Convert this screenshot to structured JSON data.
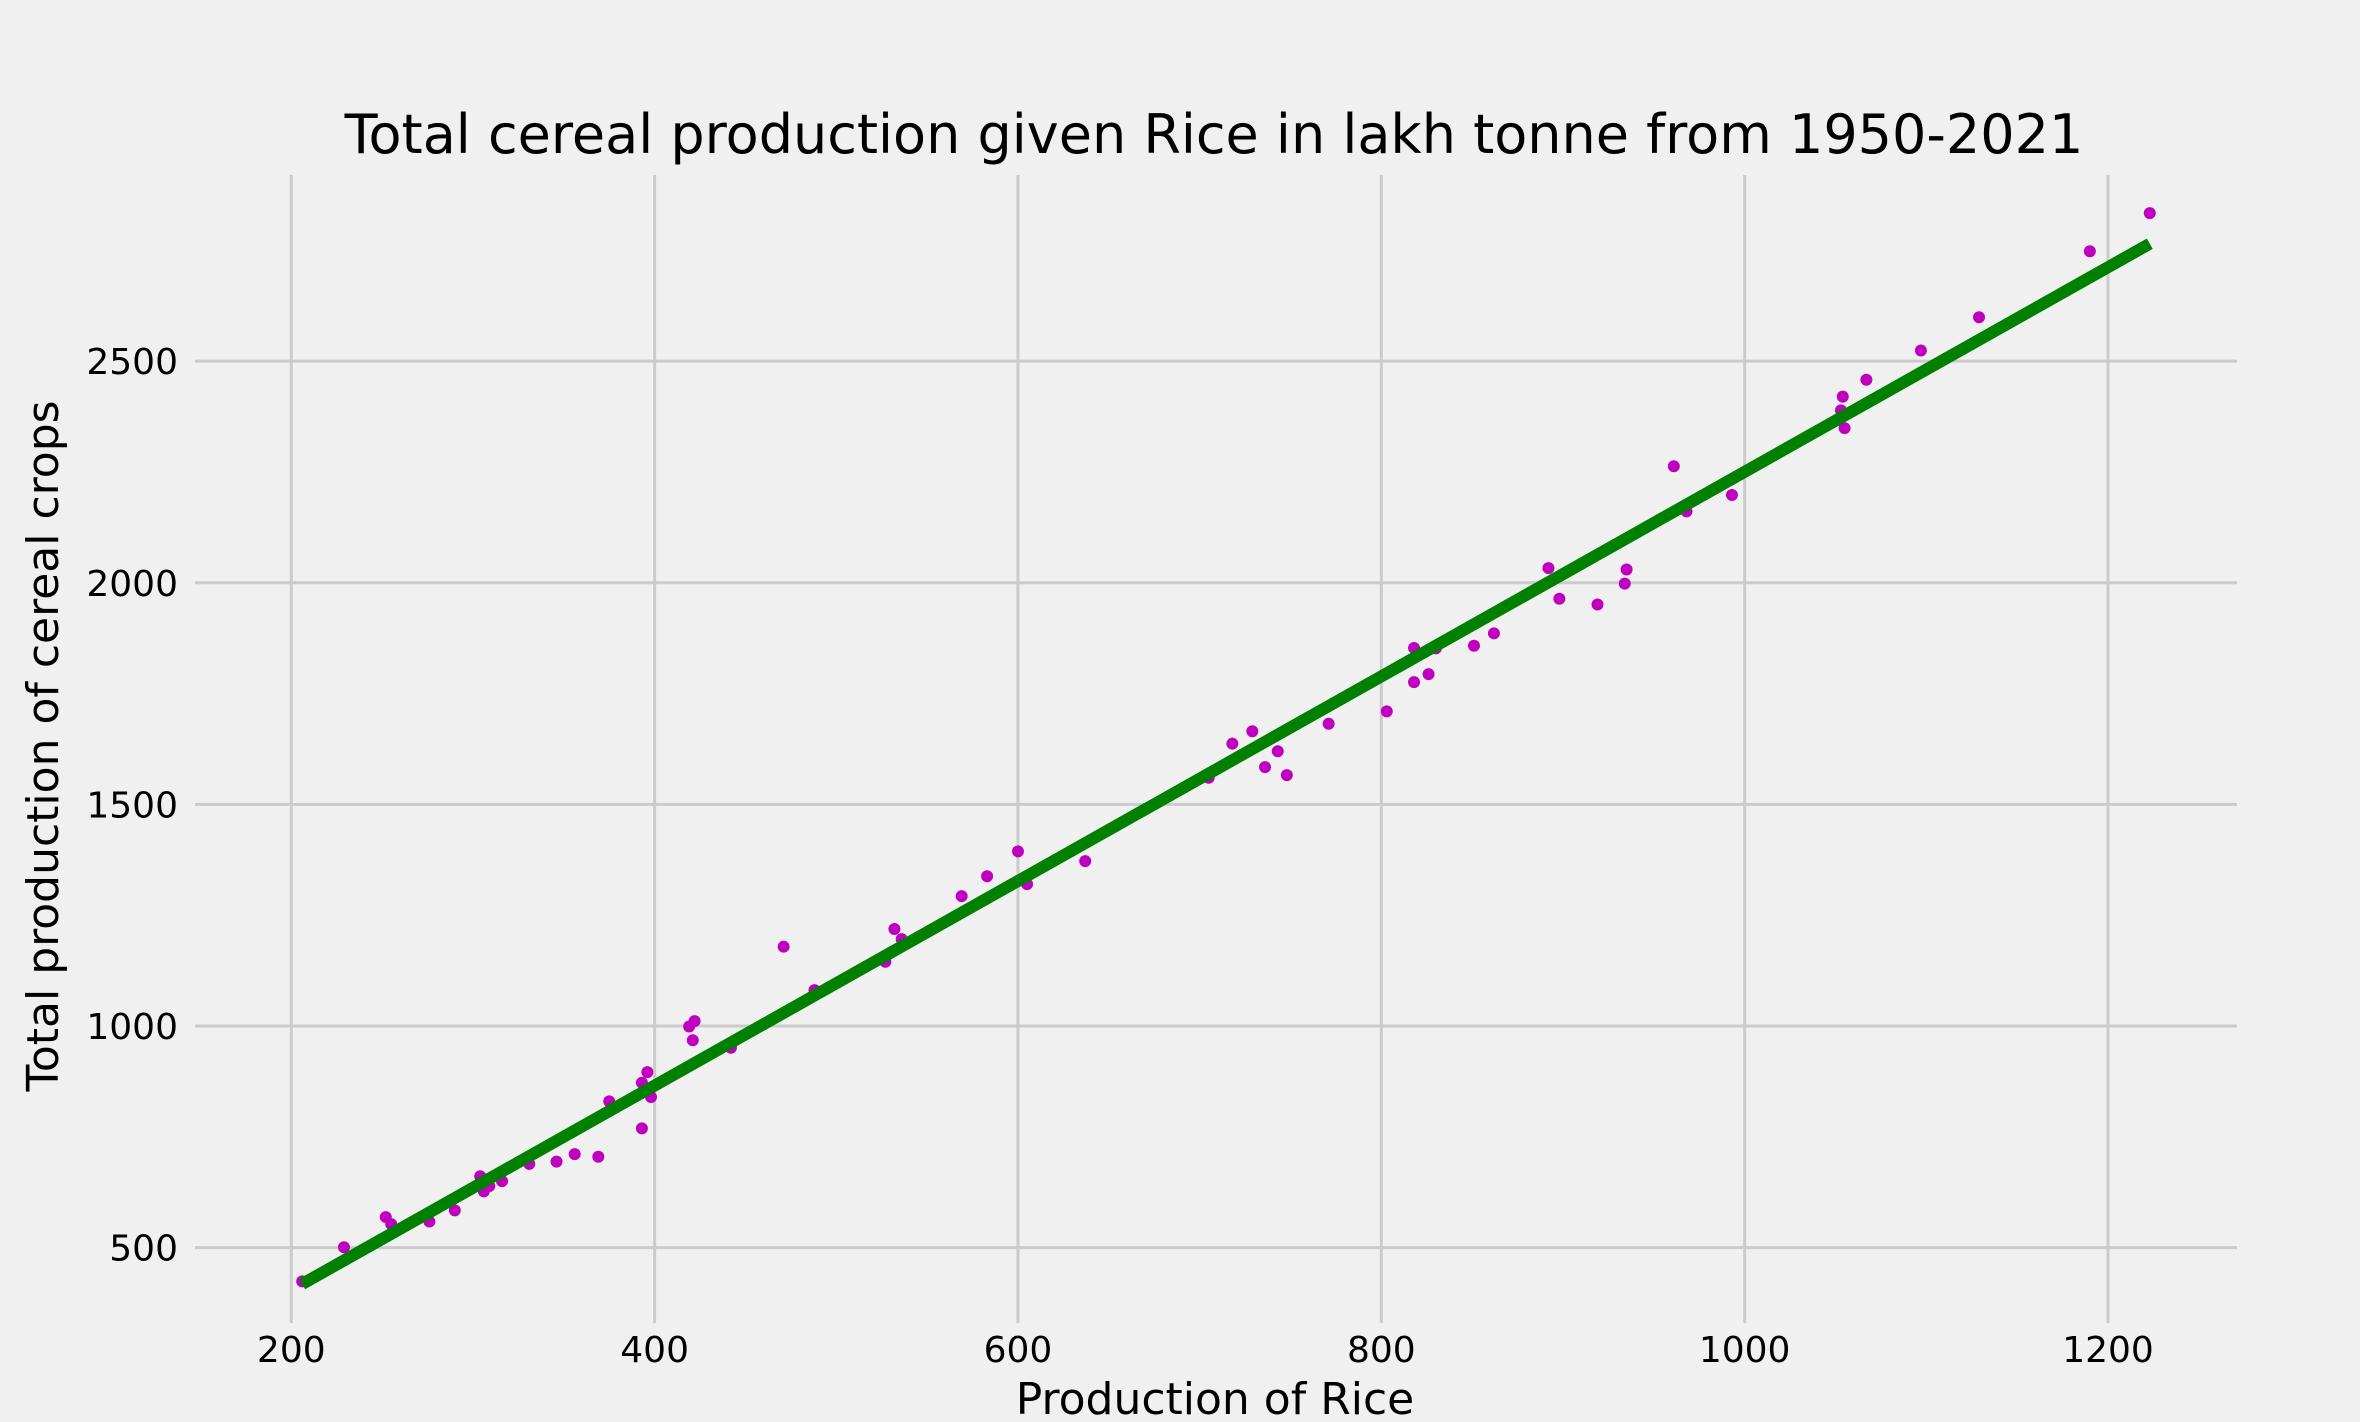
{
  "chart_data": {
    "type": "scatter",
    "title": "Total cereal production given Rice in lakh tonne from 1950-2021",
    "xlabel": "Production of Rice",
    "ylabel": "Total production of cereal crops",
    "xlim": [
      147,
      1271
    ],
    "ylim": [
      330,
      2920
    ],
    "xticks": [
      200,
      400,
      600,
      800,
      1000,
      1200
    ],
    "yticks": [
      500,
      1000,
      1500,
      2000,
      2500
    ],
    "grid": true,
    "legend": "none",
    "colors": {
      "points": "#bf00bf",
      "line": "#008000",
      "background": "#f0f0f0",
      "grid": "#cbcbcb"
    },
    "series": [
      {
        "kind": "points",
        "x": [
          206,
          229,
          252,
          255,
          276,
          290,
          304,
          306,
          309,
          316,
          331,
          346,
          356,
          369,
          375,
          393,
          393,
          396,
          398,
          419,
          421,
          422,
          442,
          471,
          488,
          527,
          532,
          536,
          569,
          583,
          600,
          605,
          637,
          705,
          718,
          729,
          736,
          743,
          748,
          771,
          803,
          818,
          818,
          826,
          830,
          851,
          862,
          892,
          898,
          919,
          934,
          935,
          961,
          968,
          993,
          1053,
          1054,
          1055,
          1067,
          1097,
          1129,
          1190,
          1223
        ],
        "y": [
          424,
          501,
          569,
          553,
          559,
          584,
          661,
          627,
          639,
          650,
          689,
          694,
          711,
          705,
          830,
          769,
          872,
          896,
          840,
          999,
          968,
          1011,
          951,
          1179,
          1081,
          1145,
          1219,
          1196,
          1293,
          1338,
          1394,
          1320,
          1372,
          1560,
          1637,
          1665,
          1584,
          1620,
          1566,
          1682,
          1710,
          1853,
          1776,
          1794,
          1852,
          1858,
          1886,
          2033,
          1964,
          1951,
          1998,
          2030,
          2263,
          2161,
          2198,
          2389,
          2420,
          2349,
          2458,
          2524,
          2599,
          2748,
          2834
        ]
      },
      {
        "kind": "fit-line",
        "x": [
          206,
          1223
        ],
        "y": [
          418,
          2765
        ]
      }
    ]
  }
}
